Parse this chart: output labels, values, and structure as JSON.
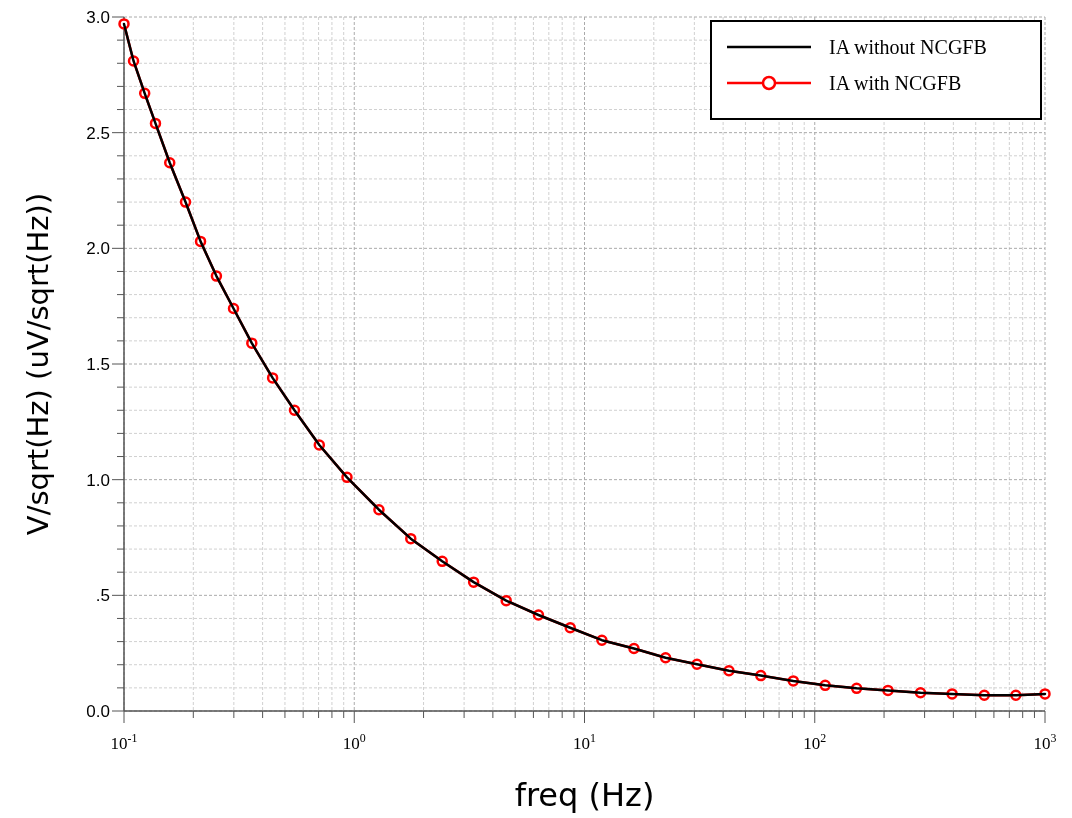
{
  "chart_data": {
    "type": "line",
    "xlabel": "freq (Hz)",
    "ylabel": "V/sqrt(Hz) (uV/sqrt(Hz))",
    "x": [
      0.1,
      0.11,
      0.123,
      0.137,
      0.158,
      0.185,
      0.215,
      0.252,
      0.299,
      0.359,
      0.442,
      0.55,
      0.705,
      0.93,
      1.28,
      1.76,
      2.41,
      3.3,
      4.57,
      6.31,
      8.67,
      11.9,
      16.4,
      22.5,
      30.8,
      42.4,
      58.3,
      80.7,
      111,
      152,
      208,
      288,
      395,
      545,
      747,
      1000
    ],
    "series": [
      {
        "name": "IA with NCGFB",
        "color": "#ff0000",
        "marker": "circle",
        "values": [
          2.97,
          2.81,
          2.67,
          2.54,
          2.37,
          2.2,
          2.03,
          1.88,
          1.74,
          1.59,
          1.44,
          1.3,
          1.15,
          1.01,
          0.87,
          0.745,
          0.647,
          0.557,
          0.477,
          0.415,
          0.36,
          0.306,
          0.27,
          0.23,
          0.202,
          0.174,
          0.153,
          0.13,
          0.111,
          0.098,
          0.089,
          0.079,
          0.074,
          0.068,
          0.068,
          0.074
        ]
      },
      {
        "name": "IA without NCGFB",
        "color": "#000000",
        "marker": "none",
        "values": [
          2.97,
          2.81,
          2.67,
          2.54,
          2.37,
          2.2,
          2.03,
          1.88,
          1.74,
          1.59,
          1.44,
          1.3,
          1.15,
          1.01,
          0.87,
          0.745,
          0.647,
          0.557,
          0.477,
          0.415,
          0.36,
          0.306,
          0.27,
          0.23,
          0.202,
          0.174,
          0.153,
          0.13,
          0.111,
          0.098,
          0.089,
          0.079,
          0.074,
          0.068,
          0.068,
          0.074
        ]
      }
    ],
    "log": "x",
    "xlim": [
      0.1,
      1000
    ],
    "ylim": [
      0,
      3
    ],
    "xticks": [
      {
        "value": 0.1,
        "label": "10$^{-1}$"
      },
      {
        "value": 0.2,
        "label": null
      },
      {
        "value": 0.3,
        "label": null
      },
      {
        "value": 0.4,
        "label": null
      },
      {
        "value": 0.5,
        "label": null
      },
      {
        "value": 0.6,
        "label": null
      },
      {
        "value": 0.7,
        "label": null
      },
      {
        "value": 0.8,
        "label": null
      },
      {
        "value": 0.9,
        "label": null
      },
      {
        "value": 1,
        "label": "10$^{0}$"
      },
      {
        "value": 2,
        "label": null
      },
      {
        "value": 3,
        "label": null
      },
      {
        "value": 4,
        "label": null
      },
      {
        "value": 5,
        "label": null
      },
      {
        "value": 6,
        "label": null
      },
      {
        "value": 7,
        "label": null
      },
      {
        "value": 8,
        "label": null
      },
      {
        "value": 9,
        "label": null
      },
      {
        "value": 10,
        "label": "10$^{1}$"
      },
      {
        "value": 20,
        "label": null
      },
      {
        "value": 30,
        "label": null
      },
      {
        "value": 40,
        "label": null
      },
      {
        "value": 50,
        "label": null
      },
      {
        "value": 60,
        "label": null
      },
      {
        "value": 70,
        "label": null
      },
      {
        "value": 80,
        "label": null
      },
      {
        "value": 90,
        "label": null
      },
      {
        "value": 100,
        "label": "10$^{2}$"
      },
      {
        "value": 200,
        "label": null
      },
      {
        "value": 300,
        "label": null
      },
      {
        "value": 400,
        "label": null
      },
      {
        "value": 500,
        "label": null
      },
      {
        "value": 600,
        "label": null
      },
      {
        "value": 700,
        "label": null
      },
      {
        "value": 800,
        "label": null
      },
      {
        "value": 900,
        "label": null
      },
      {
        "value": 1000,
        "label": "10$^{3}$"
      }
    ],
    "yticks": [
      {
        "value": 0,
        "label": "0.0"
      },
      {
        "value": 0.1,
        "label": null
      },
      {
        "value": 0.2,
        "label": null
      },
      {
        "value": 0.3,
        "label": null
      },
      {
        "value": 0.4,
        "label": null
      },
      {
        "value": 0.5,
        "label": ".5"
      },
      {
        "value": 0.6,
        "label": null
      },
      {
        "value": 0.7,
        "label": null
      },
      {
        "value": 0.8,
        "label": null
      },
      {
        "value": 0.9,
        "label": null
      },
      {
        "value": 1,
        "label": "1.0"
      },
      {
        "value": 1.1,
        "label": null
      },
      {
        "value": 1.2,
        "label": null
      },
      {
        "value": 1.3,
        "label": null
      },
      {
        "value": 1.4,
        "label": null
      },
      {
        "value": 1.5,
        "label": "1.5"
      },
      {
        "value": 1.6,
        "label": null
      },
      {
        "value": 1.7,
        "label": null
      },
      {
        "value": 1.8,
        "label": null
      },
      {
        "value": 1.9,
        "label": null
      },
      {
        "value": 2,
        "label": "2.0"
      },
      {
        "value": 2.1,
        "label": null
      },
      {
        "value": 2.2,
        "label": null
      },
      {
        "value": 2.3,
        "label": null
      },
      {
        "value": 2.4,
        "label": null
      },
      {
        "value": 2.5,
        "label": "2.5"
      },
      {
        "value": 2.6,
        "label": null
      },
      {
        "value": 2.7,
        "label": null
      },
      {
        "value": 2.8,
        "label": null
      },
      {
        "value": 2.9,
        "label": null
      },
      {
        "value": 3,
        "label": "3.0"
      }
    ],
    "grid": true,
    "legend": "top right"
  }
}
